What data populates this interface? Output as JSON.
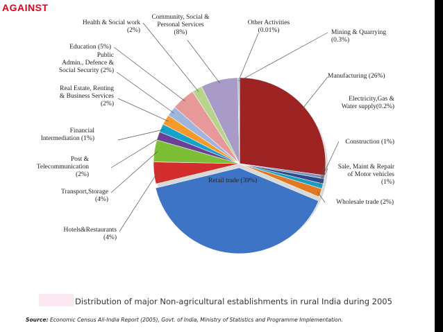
{
  "slide": {
    "tag": "AGAINST",
    "caption": "Distribution of major Non-agricultural establishments in rural India during 2005",
    "source_label": "Source:",
    "source_text": "Economic Census All-India Report (2005), Govt. of India, Ministry of Statistics and Programme Implementation."
  },
  "chart_data": {
    "type": "pie",
    "title": "",
    "slices": [
      {
        "label": [
          "Manufacturing (26%)"
        ],
        "value": 26,
        "color": "#9e2424"
      },
      {
        "label": [
          "Electricity,Gas &",
          "Water supply(0.2%)"
        ],
        "value": 0.2,
        "color": "#7e93c2"
      },
      {
        "label": [
          "Construction (1%)"
        ],
        "value": 1,
        "color": "#2d4a86"
      },
      {
        "label": [
          "Sale, Maint & Repair",
          "of Motor vehicles",
          "(1%)"
        ],
        "value": 1,
        "color": "#1c9cc2"
      },
      {
        "label": [
          "Wholesale trade (2%)"
        ],
        "value": 2,
        "color": "#e07a22"
      },
      {
        "label": [
          "Retail trade (39%)"
        ],
        "value": 39,
        "color": "#3d74c6"
      },
      {
        "label": [
          "Hotels&Restaurants",
          "(4%)"
        ],
        "value": 4,
        "color": "#d42d2d"
      },
      {
        "label": [
          "Transport,Storage",
          "(4%)"
        ],
        "value": 4,
        "color": "#7cbf36"
      },
      {
        "label": [
          "Post &",
          "Telecommunication",
          "(2%)"
        ],
        "value": 2,
        "color": "#6a4196"
      },
      {
        "label": [
          "Financial",
          "Intermediation (1%)"
        ],
        "value": 1,
        "color": "#15a3c9"
      },
      {
        "label": [
          "Real Estate, Renting",
          "& Business Services",
          "(2%)"
        ],
        "value": 2,
        "color": "#f79a2b"
      },
      {
        "label": [
          "Public",
          "Admin., Defence &",
          "Social Security (2%)"
        ],
        "value": 2,
        "color": "#9fb5dc"
      },
      {
        "label": [
          "Education (5%)"
        ],
        "value": 5,
        "color": "#e79898"
      },
      {
        "label": [
          "Health & Social work",
          "(2%)"
        ],
        "value": 2,
        "color": "#b7d48d"
      },
      {
        "label": [
          "Community, Social &",
          "Personal Services",
          "(8%)"
        ],
        "value": 8,
        "color": "#a99bc8"
      },
      {
        "label": [
          "Other Activities",
          "(0.01%)"
        ],
        "value": 0.01,
        "color": "#3fb3d1"
      },
      {
        "label": [
          "Mining & Quarrying",
          "(0.3%)"
        ],
        "value": 0.3,
        "color": "#2b4b8c"
      }
    ]
  }
}
